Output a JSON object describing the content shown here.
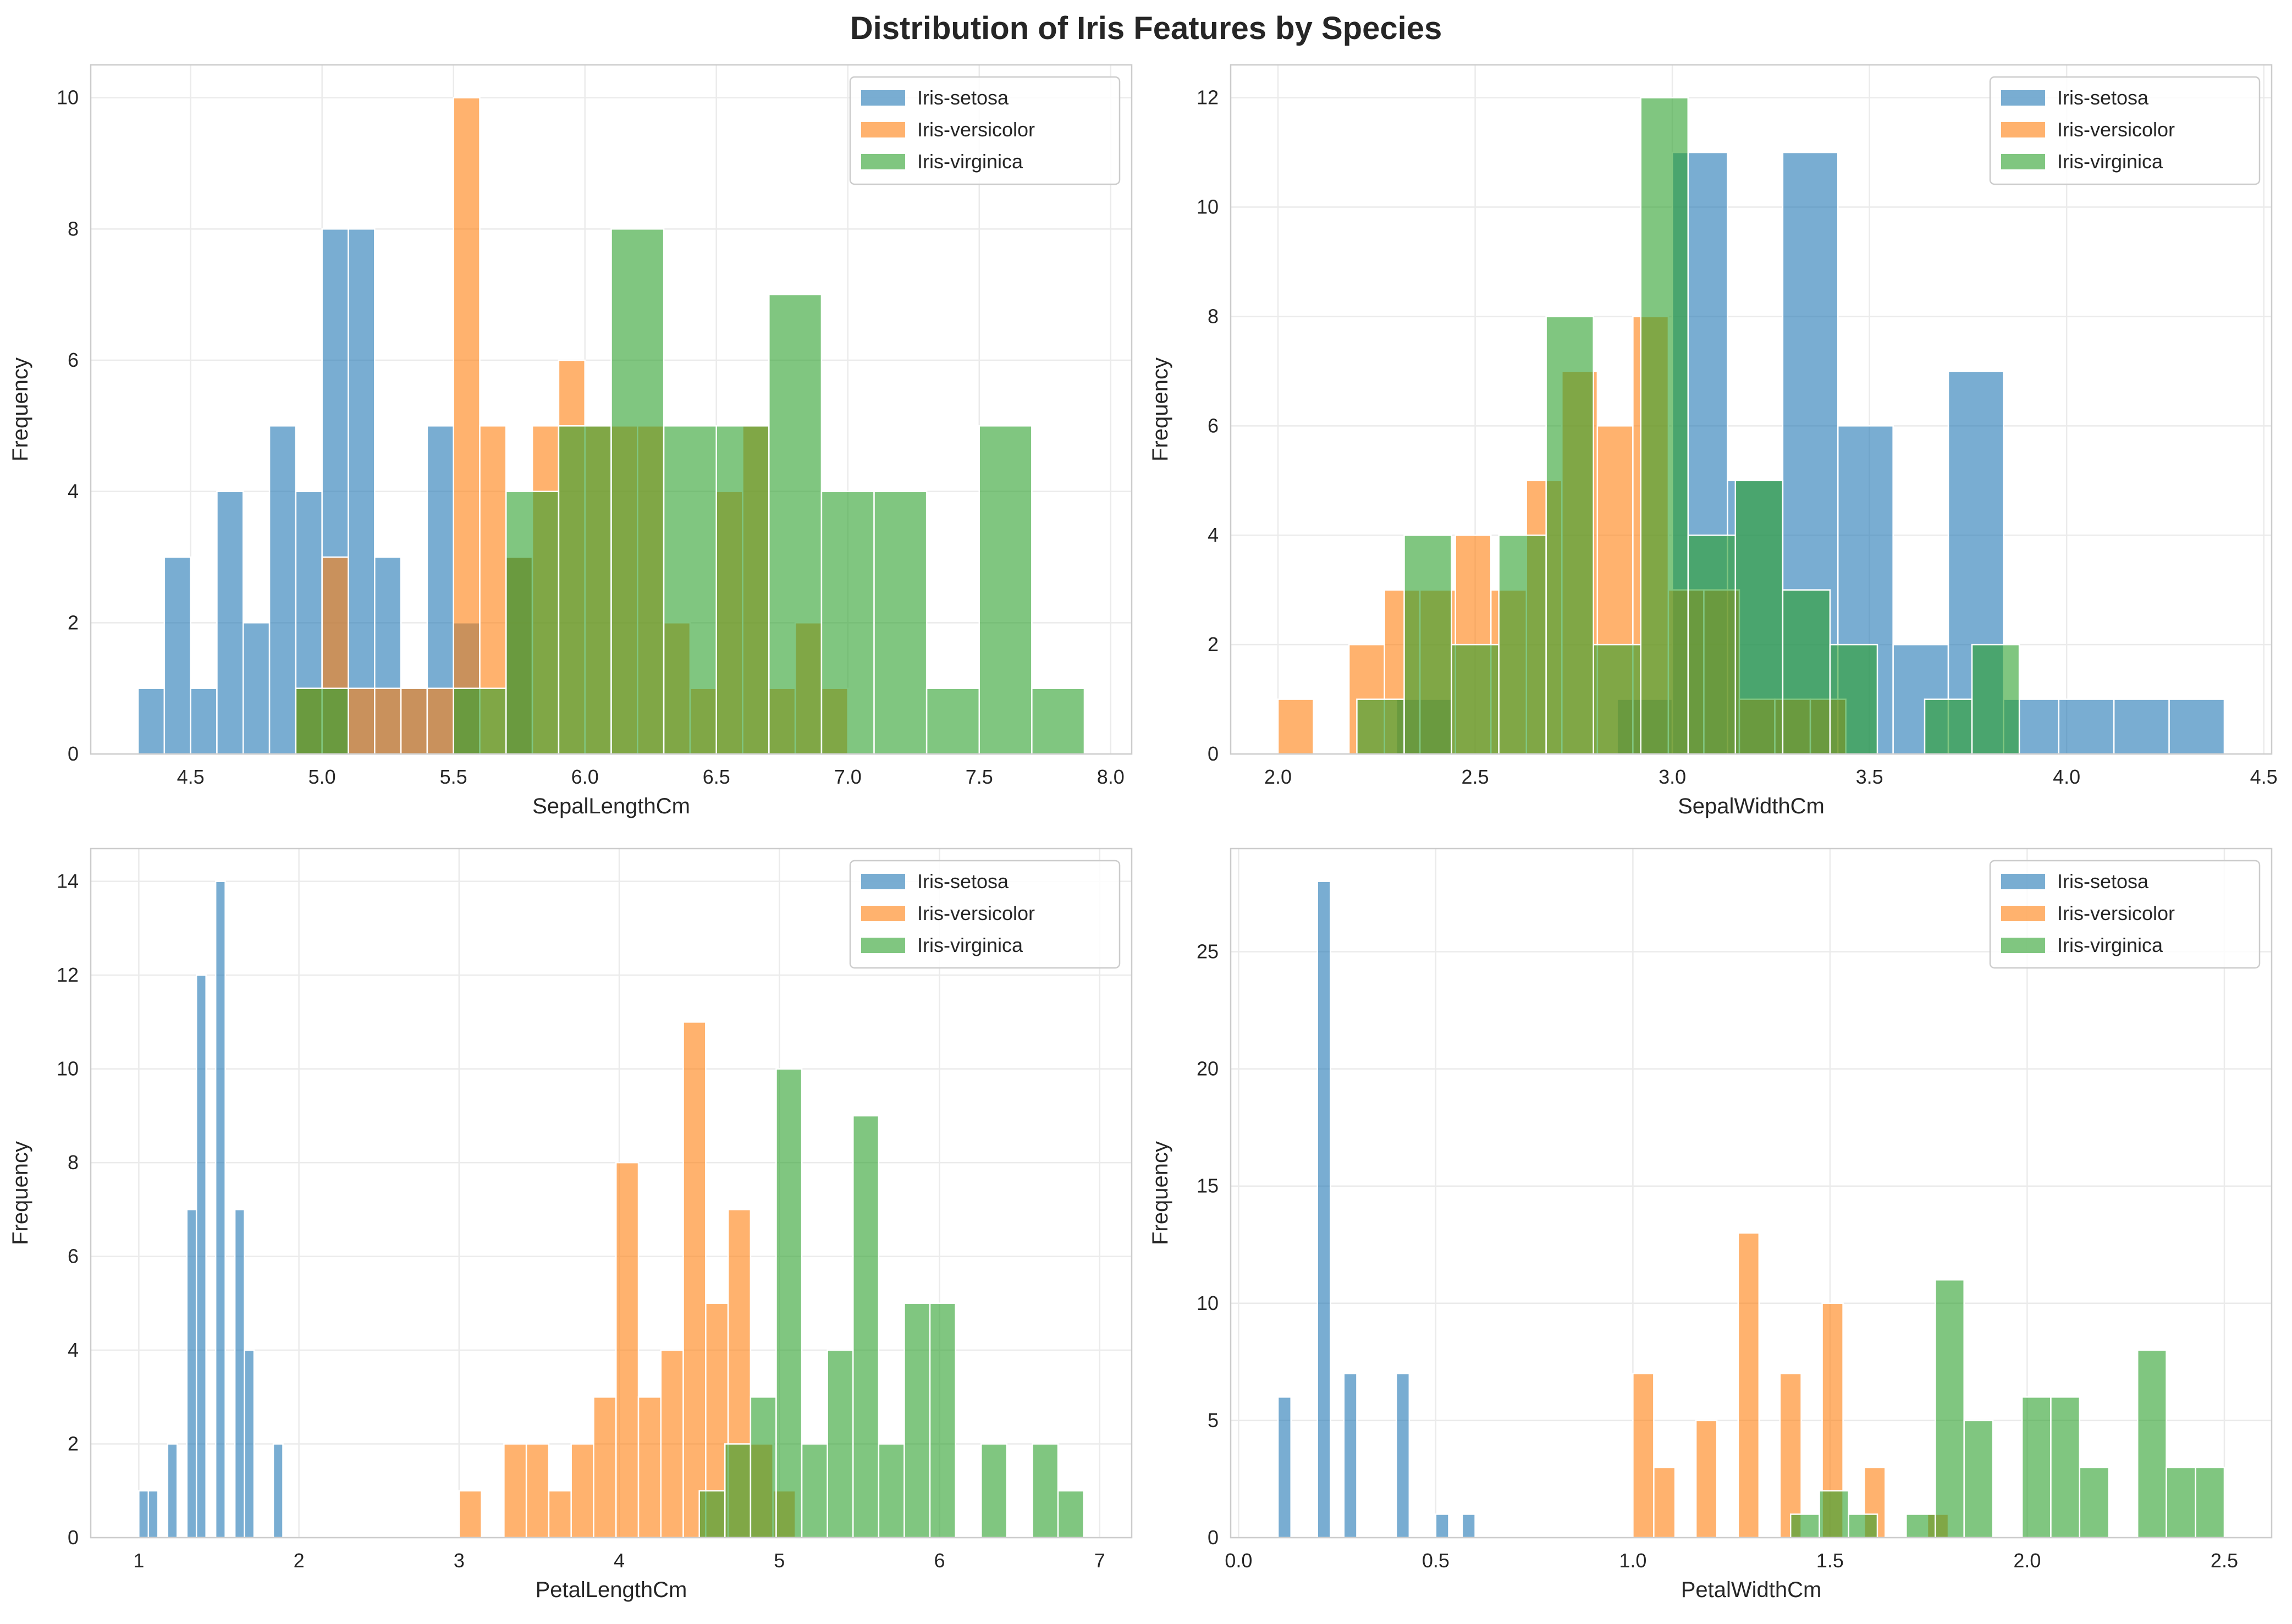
{
  "title": "Distribution of Iris Features by Species",
  "colors": {
    "Iris-setosa": "#1f77b4",
    "Iris-versicolor": "#ff7f0e",
    "Iris-virginica": "#2ca02c"
  },
  "chart_data": [
    {
      "type": "bar",
      "subtype": "histogram",
      "xlabel": "SepalLengthCm",
      "ylabel": "Frequency",
      "xlim": [
        4.12,
        8.08
      ],
      "ylim": [
        0,
        10.5
      ],
      "xticks": [
        "4.5",
        "5.0",
        "5.5",
        "6.0",
        "6.5",
        "7.0",
        "7.5",
        "8.0"
      ],
      "yticks": [
        "0",
        "2",
        "4",
        "6",
        "8",
        "10"
      ],
      "grid": true,
      "legend_position": "top-right",
      "series": [
        {
          "name": "Iris-setosa",
          "bin_edges": [
            4.3,
            4.4,
            4.5,
            4.6,
            4.7,
            4.8,
            4.9,
            5.0,
            5.1,
            5.2,
            5.3,
            5.4,
            5.5,
            5.6,
            5.7,
            5.8
          ],
          "counts": [
            1,
            3,
            1,
            4,
            2,
            5,
            4,
            8,
            8,
            3,
            1,
            5,
            2,
            0,
            3
          ]
        },
        {
          "name": "Iris-versicolor",
          "bin_edges": [
            4.9,
            5.0,
            5.1,
            5.2,
            5.3,
            5.4,
            5.5,
            5.6,
            5.7,
            5.8,
            5.9,
            6.0,
            6.1,
            6.2,
            6.3,
            6.4,
            6.5,
            6.6,
            6.7,
            6.8,
            6.9,
            7.0
          ],
          "counts": [
            1,
            3,
            1,
            1,
            1,
            1,
            10,
            5,
            3,
            5,
            6,
            5,
            5,
            5,
            2,
            1,
            4,
            5,
            1,
            2,
            1
          ]
        },
        {
          "name": "Iris-virginica",
          "bin_edges": [
            4.9,
            5.1,
            5.3,
            5.5,
            5.7,
            5.9,
            6.1,
            6.3,
            6.5,
            6.7,
            6.9,
            7.1,
            7.3,
            7.5,
            7.7,
            7.9
          ],
          "counts": [
            1,
            0,
            0,
            1,
            4,
            5,
            8,
            5,
            5,
            7,
            4,
            4,
            1,
            5,
            1
          ]
        }
      ]
    },
    {
      "type": "bar",
      "subtype": "histogram",
      "xlabel": "SepalWidthCm",
      "ylabel": "Frequency",
      "xlim": [
        1.88,
        4.52
      ],
      "ylim": [
        0,
        12.6
      ],
      "xticks": [
        "2.0",
        "2.5",
        "3.0",
        "3.5",
        "4.0",
        "4.5"
      ],
      "yticks": [
        "0",
        "2",
        "4",
        "6",
        "8",
        "10",
        "12"
      ],
      "grid": true,
      "legend_position": "top-right",
      "series": [
        {
          "name": "Iris-setosa",
          "bin_edges": [
            2.3,
            2.44,
            2.58,
            2.72,
            2.86,
            3.0,
            3.14,
            3.28,
            3.42,
            3.56,
            3.7,
            3.84,
            3.98,
            4.12,
            4.26,
            4.4
          ],
          "counts": [
            1,
            0,
            0,
            0,
            1,
            11,
            5,
            11,
            6,
            2,
            7,
            1,
            1,
            1,
            1
          ]
        },
        {
          "name": "Iris-versicolor",
          "bin_edges": [
            2.0,
            2.09,
            2.18,
            2.27,
            2.36,
            2.45,
            2.54,
            2.63,
            2.72,
            2.81,
            2.9,
            2.99,
            3.08,
            3.17,
            3.26,
            3.35,
            3.44
          ],
          "counts": [
            1,
            0,
            2,
            3,
            3,
            4,
            3,
            5,
            7,
            6,
            8,
            3,
            3,
            1,
            1,
            1
          ]
        },
        {
          "name": "Iris-virginica",
          "bin_edges": [
            2.2,
            2.32,
            2.44,
            2.56,
            2.68,
            2.8,
            2.92,
            3.04,
            3.16,
            3.28,
            3.4,
            3.52,
            3.64,
            3.76,
            3.88
          ],
          "counts": [
            1,
            4,
            2,
            4,
            8,
            2,
            12,
            4,
            5,
            3,
            2,
            0,
            1,
            2
          ]
        }
      ]
    },
    {
      "type": "bar",
      "subtype": "histogram",
      "xlabel": "PetalLengthCm",
      "ylabel": "Frequency",
      "xlim": [
        0.7,
        7.2
      ],
      "ylim": [
        0,
        14.7
      ],
      "xticks": [
        "1",
        "2",
        "3",
        "4",
        "5",
        "6",
        "7"
      ],
      "yticks": [
        "0",
        "2",
        "4",
        "6",
        "8",
        "10",
        "12",
        "14"
      ],
      "grid": true,
      "legend_position": "top-right",
      "series": [
        {
          "name": "Iris-setosa",
          "bin_edges": [
            1.0,
            1.06,
            1.12,
            1.18,
            1.24,
            1.3,
            1.36,
            1.42,
            1.48,
            1.54,
            1.6,
            1.66,
            1.72,
            1.78,
            1.84,
            1.9
          ],
          "counts": [
            1,
            1,
            0,
            2,
            0,
            7,
            12,
            0,
            14,
            0,
            7,
            4,
            0,
            0,
            2
          ]
        },
        {
          "name": "Iris-versicolor",
          "bin_edges": [
            3.0,
            3.14,
            3.28,
            3.42,
            3.56,
            3.7,
            3.84,
            3.98,
            4.12,
            4.26,
            4.4,
            4.54,
            4.68,
            4.82,
            4.96,
            5.1
          ],
          "counts": [
            1,
            0,
            2,
            2,
            1,
            2,
            3,
            8,
            3,
            4,
            11,
            5,
            7,
            2,
            1
          ]
        },
        {
          "name": "Iris-virginica",
          "bin_edges": [
            4.5,
            4.66,
            4.82,
            4.98,
            5.14,
            5.3,
            5.46,
            5.62,
            5.78,
            5.94,
            6.1,
            6.26,
            6.42,
            6.58,
            6.74,
            6.9
          ],
          "counts": [
            1,
            2,
            3,
            10,
            2,
            4,
            9,
            2,
            5,
            5,
            0,
            2,
            0,
            2,
            1
          ]
        }
      ]
    },
    {
      "type": "bar",
      "subtype": "histogram",
      "xlabel": "PetalWidthCm",
      "ylabel": "Frequency",
      "xlim": [
        -0.02,
        2.62
      ],
      "ylim": [
        0,
        29.4
      ],
      "xticks": [
        "0.0",
        "0.5",
        "1.0",
        "1.5",
        "2.0",
        "2.5"
      ],
      "yticks": [
        "0",
        "5",
        "10",
        "15",
        "20",
        "25"
      ],
      "grid": true,
      "legend_position": "top-right",
      "series": [
        {
          "name": "Iris-setosa",
          "bin_edges": [
            0.1,
            0.133,
            0.167,
            0.2,
            0.233,
            0.267,
            0.3,
            0.333,
            0.367,
            0.4,
            0.433,
            0.467,
            0.5,
            0.533,
            0.567,
            0.6
          ],
          "counts": [
            6,
            0,
            0,
            28,
            0,
            7,
            0,
            0,
            0,
            7,
            0,
            0,
            1,
            0,
            1
          ]
        },
        {
          "name": "Iris-versicolor",
          "bin_edges": [
            1.0,
            1.053,
            1.107,
            1.16,
            1.213,
            1.267,
            1.32,
            1.373,
            1.427,
            1.48,
            1.533,
            1.587,
            1.64,
            1.693,
            1.747,
            1.8
          ],
          "counts": [
            7,
            3,
            0,
            5,
            0,
            13,
            0,
            7,
            0,
            10,
            0,
            3,
            0,
            0,
            1
          ]
        },
        {
          "name": "Iris-virginica",
          "bin_edges": [
            1.4,
            1.473,
            1.547,
            1.62,
            1.693,
            1.767,
            1.84,
            1.913,
            1.987,
            2.06,
            2.133,
            2.207,
            2.28,
            2.353,
            2.427,
            2.5
          ],
          "counts": [
            1,
            2,
            1,
            0,
            1,
            11,
            5,
            0,
            6,
            6,
            3,
            0,
            8,
            3,
            3
          ]
        }
      ]
    }
  ]
}
